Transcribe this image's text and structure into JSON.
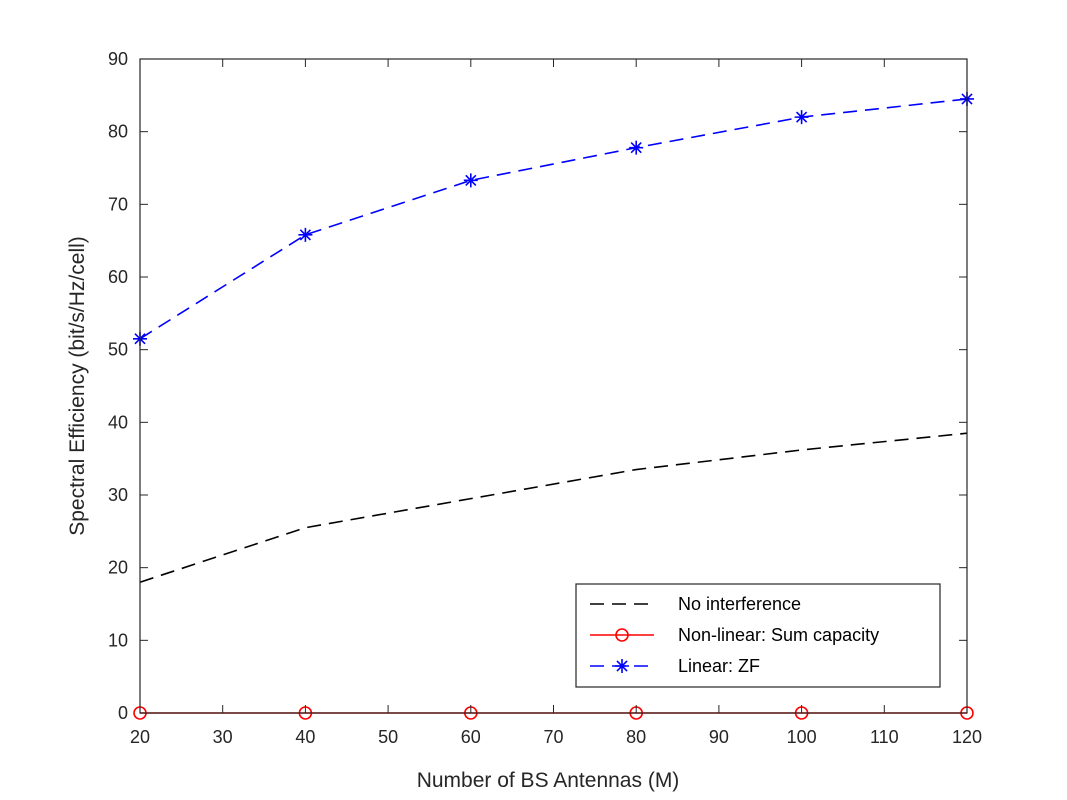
{
  "chart_data": {
    "type": "line",
    "title": "",
    "xlabel": "Number of BS Antennas (M)",
    "ylabel": "Spectral Efficiency (bit/s/Hz/cell)",
    "xlim": [
      20,
      120
    ],
    "ylim": [
      0,
      90
    ],
    "xticks": [
      "20",
      "30",
      "40",
      "50",
      "60",
      "70",
      "80",
      "90",
      "100",
      "110",
      "120"
    ],
    "yticks": [
      "0",
      "10",
      "20",
      "30",
      "40",
      "50",
      "60",
      "70",
      "80",
      "90"
    ],
    "grid": false,
    "legend_position": "bottom-right",
    "x": [
      20,
      40,
      60,
      80,
      100,
      120
    ],
    "series": [
      {
        "name": "No interference",
        "values": [
          18,
          25.5,
          29.5,
          33.5,
          36.2,
          38.5
        ],
        "color": "#000000",
        "line_style": "dashed",
        "marker": "none"
      },
      {
        "name": "Non-linear: Sum capacity",
        "values": [
          0,
          0,
          0,
          0,
          0,
          0
        ],
        "color": "#ff0000",
        "line_style": "solid",
        "marker": "circle"
      },
      {
        "name": "Linear: ZF",
        "values": [
          51.5,
          65.8,
          73.3,
          77.8,
          82,
          84.5
        ],
        "color": "#0000ff",
        "line_style": "dashed",
        "marker": "asterisk"
      }
    ]
  }
}
